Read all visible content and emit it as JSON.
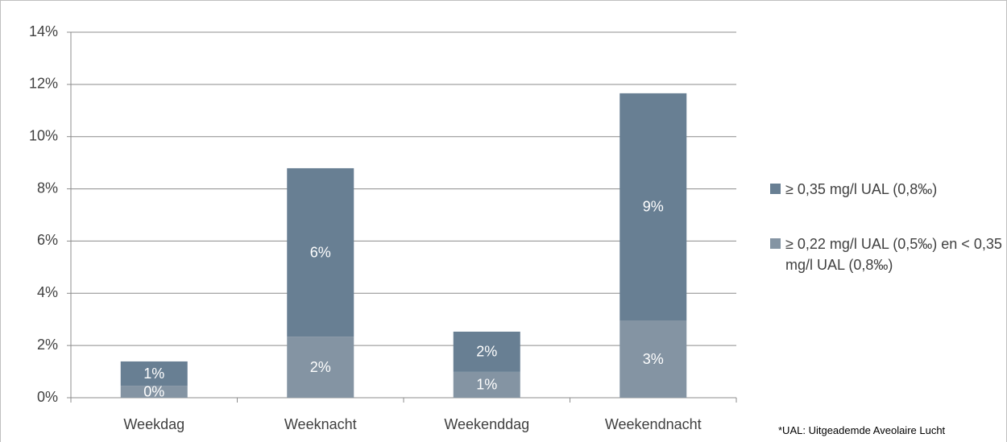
{
  "chart_data": {
    "type": "stacked_bar",
    "categories": [
      "Weekdag",
      "Weeknacht",
      "Weekenddag",
      "Weekendnacht"
    ],
    "series": [
      {
        "name": "≥ 0,35 mg/l UAL (0,8‰)",
        "color": "#687f93",
        "values": [
          0.93,
          6.45,
          1.54,
          8.7
        ],
        "value_labels": [
          "1%",
          "6%",
          "2%",
          "9%"
        ]
      },
      {
        "name": "≥ 0,22 mg/l UAL (0,5‰) en < 0,35 mg/l UAL (0,8‰)",
        "color": "#8494a3",
        "values": [
          0.46,
          2.34,
          0.99,
          2.96
        ],
        "value_labels": [
          "0%",
          "2%",
          "1%",
          "3%"
        ]
      }
    ],
    "ylim": [
      0,
      14
    ],
    "yticks": [
      {
        "value": 0,
        "label": "0%"
      },
      {
        "value": 2,
        "label": "2%"
      },
      {
        "value": 4,
        "label": "4%"
      },
      {
        "value": 6,
        "label": "6%"
      },
      {
        "value": 8,
        "label": "8%"
      },
      {
        "value": 10,
        "label": "10%"
      },
      {
        "value": 12,
        "label": "12%"
      },
      {
        "value": 14,
        "label": "14%"
      }
    ],
    "grid": true,
    "legend": "right",
    "footnote": "*UAL: Uitgeademde Aveolaire Lucht"
  }
}
